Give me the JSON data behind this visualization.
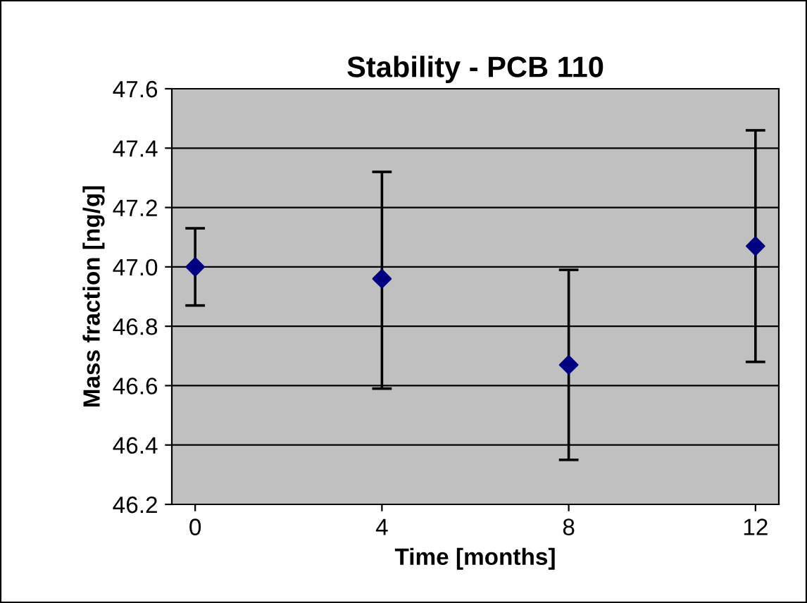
{
  "chart_data": {
    "type": "scatter",
    "title": "Stability - PCB 110",
    "xlabel": "Time [months]",
    "ylabel": "Mass fraction [ng/g]",
    "x": [
      0,
      4,
      8,
      12
    ],
    "series": [
      {
        "color": "#000080",
        "values": [
          47.0,
          46.96,
          46.67,
          47.07
        ],
        "errors": [
          [
            46.87,
            47.13
          ],
          [
            46.59,
            47.32
          ],
          [
            46.35,
            46.99
          ],
          [
            46.68,
            47.46
          ]
        ]
      }
    ],
    "xlim": [
      -0.5,
      12.5
    ],
    "xticks": [
      0,
      4,
      8,
      12
    ],
    "ylim": [
      46.2,
      47.6
    ],
    "yticks": [
      {
        "value": 46.2,
        "label": "46.2"
      },
      {
        "value": 46.4,
        "label": "46.4"
      },
      {
        "value": 46.6,
        "label": "46.6"
      },
      {
        "value": 46.8,
        "label": "46.8"
      },
      {
        "value": 47.0,
        "label": "47.0"
      },
      {
        "value": 47.2,
        "label": "47.2"
      },
      {
        "value": 47.4,
        "label": "47.4"
      },
      {
        "value": 47.6,
        "label": "47.6"
      }
    ],
    "grid": "y",
    "marker": "diamond",
    "legend": false
  }
}
